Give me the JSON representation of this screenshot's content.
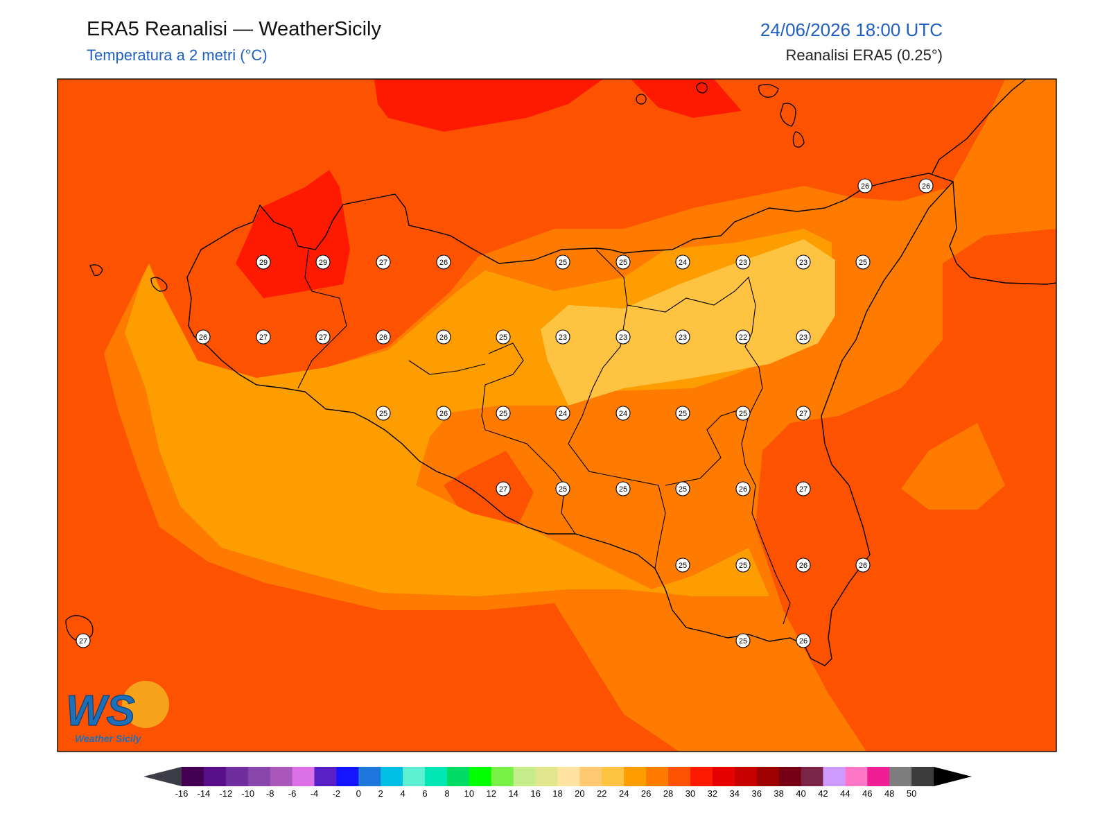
{
  "header": {
    "title": "ERA5 Reanalisi — WeatherSicily",
    "subtitle": "Temperatura a 2 metri (°C)",
    "datetime": "24/06/2026 18:00 UTC",
    "source": "Reanalisi ERA5 (0.25°)"
  },
  "logo": {
    "text": "Weather Sicily",
    "monogram": "WS"
  },
  "colors": {
    "band_26_28": "#fd5200",
    "band_24_26": "#fe7b00",
    "band_22_24": "#fe9d00",
    "band_28_30": "#fe1a00"
  },
  "stations": [
    {
      "v": "26"
    },
    {
      "v": "26"
    },
    {
      "v": "29"
    },
    {
      "v": "29"
    },
    {
      "v": "27"
    },
    {
      "v": "26"
    },
    {
      "v": "25"
    },
    {
      "v": "25"
    },
    {
      "v": "24"
    },
    {
      "v": "23"
    },
    {
      "v": "23"
    },
    {
      "v": "25"
    },
    {
      "v": "26"
    },
    {
      "v": "27"
    },
    {
      "v": "27"
    },
    {
      "v": "26"
    },
    {
      "v": "26"
    },
    {
      "v": "25"
    },
    {
      "v": "23"
    },
    {
      "v": "23"
    },
    {
      "v": "23"
    },
    {
      "v": "22"
    },
    {
      "v": "23"
    },
    {
      "v": "25"
    },
    {
      "v": "26"
    },
    {
      "v": "25"
    },
    {
      "v": "24"
    },
    {
      "v": "24"
    },
    {
      "v": "25"
    },
    {
      "v": "25"
    },
    {
      "v": "27"
    },
    {
      "v": "27"
    },
    {
      "v": "25"
    },
    {
      "v": "25"
    },
    {
      "v": "25"
    },
    {
      "v": "26"
    },
    {
      "v": "27"
    },
    {
      "v": "25"
    },
    {
      "v": "25"
    },
    {
      "v": "26"
    },
    {
      "v": "26"
    },
    {
      "v": "27"
    },
    {
      "v": "25"
    },
    {
      "v": "26"
    }
  ],
  "colorbar": {
    "labels": [
      "-16",
      "-14",
      "-12",
      "-10",
      "-8",
      "-6",
      "-4",
      "-2",
      "0",
      "2",
      "4",
      "6",
      "8",
      "10",
      "12",
      "14",
      "16",
      "18",
      "20",
      "22",
      "24",
      "26",
      "28",
      "30",
      "32",
      "34",
      "36",
      "38",
      "40",
      "42",
      "44",
      "46",
      "48",
      "50"
    ],
    "colors": [
      "#440154",
      "#5a0f8a",
      "#6f2d9e",
      "#8a45ad",
      "#a957b8",
      "#dc70e6",
      "#5a20c8",
      "#1414ff",
      "#1e78dc",
      "#00c0e6",
      "#5ef0d2",
      "#00e6b4",
      "#00dc64",
      "#00ff00",
      "#78f046",
      "#c4ec8a",
      "#e1e68c",
      "#ffe1a0",
      "#fec870",
      "#fec341",
      "#fe9d00",
      "#fe7b00",
      "#fd5200",
      "#fe1a00",
      "#e60000",
      "#c80000",
      "#9f0000",
      "#780014",
      "#7a2448",
      "#cd9cfe",
      "#ff78c8",
      "#f01e96",
      "#7d7d7d",
      "#3c3c3c"
    ]
  }
}
